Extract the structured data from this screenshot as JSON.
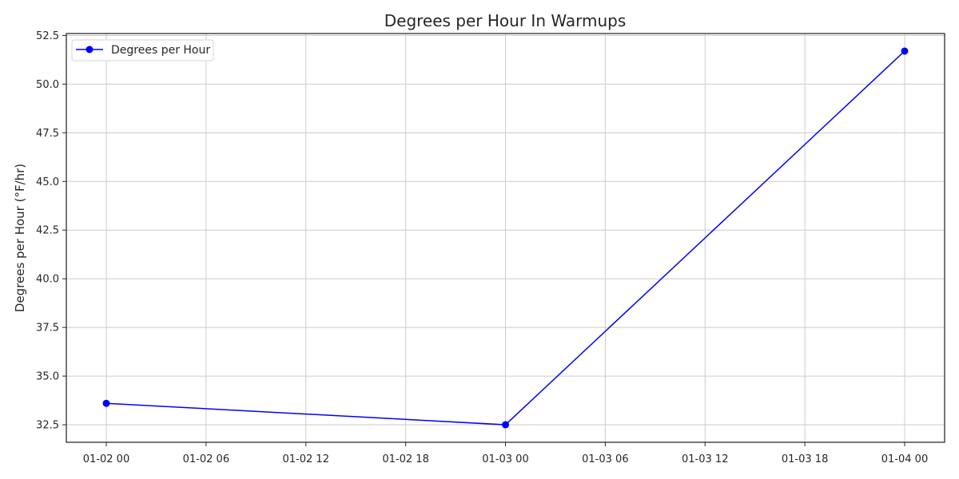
{
  "chart_data": {
    "type": "line",
    "title": "Degrees per Hour In Warmups",
    "xlabel": "",
    "ylabel": "Degrees per Hour (°F/hr)",
    "x": [
      "01-02 00",
      "01-03 00",
      "01-04 00"
    ],
    "series": [
      {
        "name": "Degrees per Hour",
        "color": "#0000ff",
        "values": [
          33.6,
          32.5,
          51.7
        ]
      }
    ],
    "xticks": [
      "01-02 00",
      "01-02 06",
      "01-02 12",
      "01-02 18",
      "01-03 00",
      "01-03 06",
      "01-03 12",
      "01-03 18",
      "01-04 00"
    ],
    "yticks": [
      "32.5",
      "35.0",
      "37.5",
      "40.0",
      "42.5",
      "45.0",
      "47.5",
      "50.0",
      "52.5"
    ],
    "ylim": [
      31.6,
      52.6
    ],
    "grid": true,
    "legend": "upper-left"
  }
}
